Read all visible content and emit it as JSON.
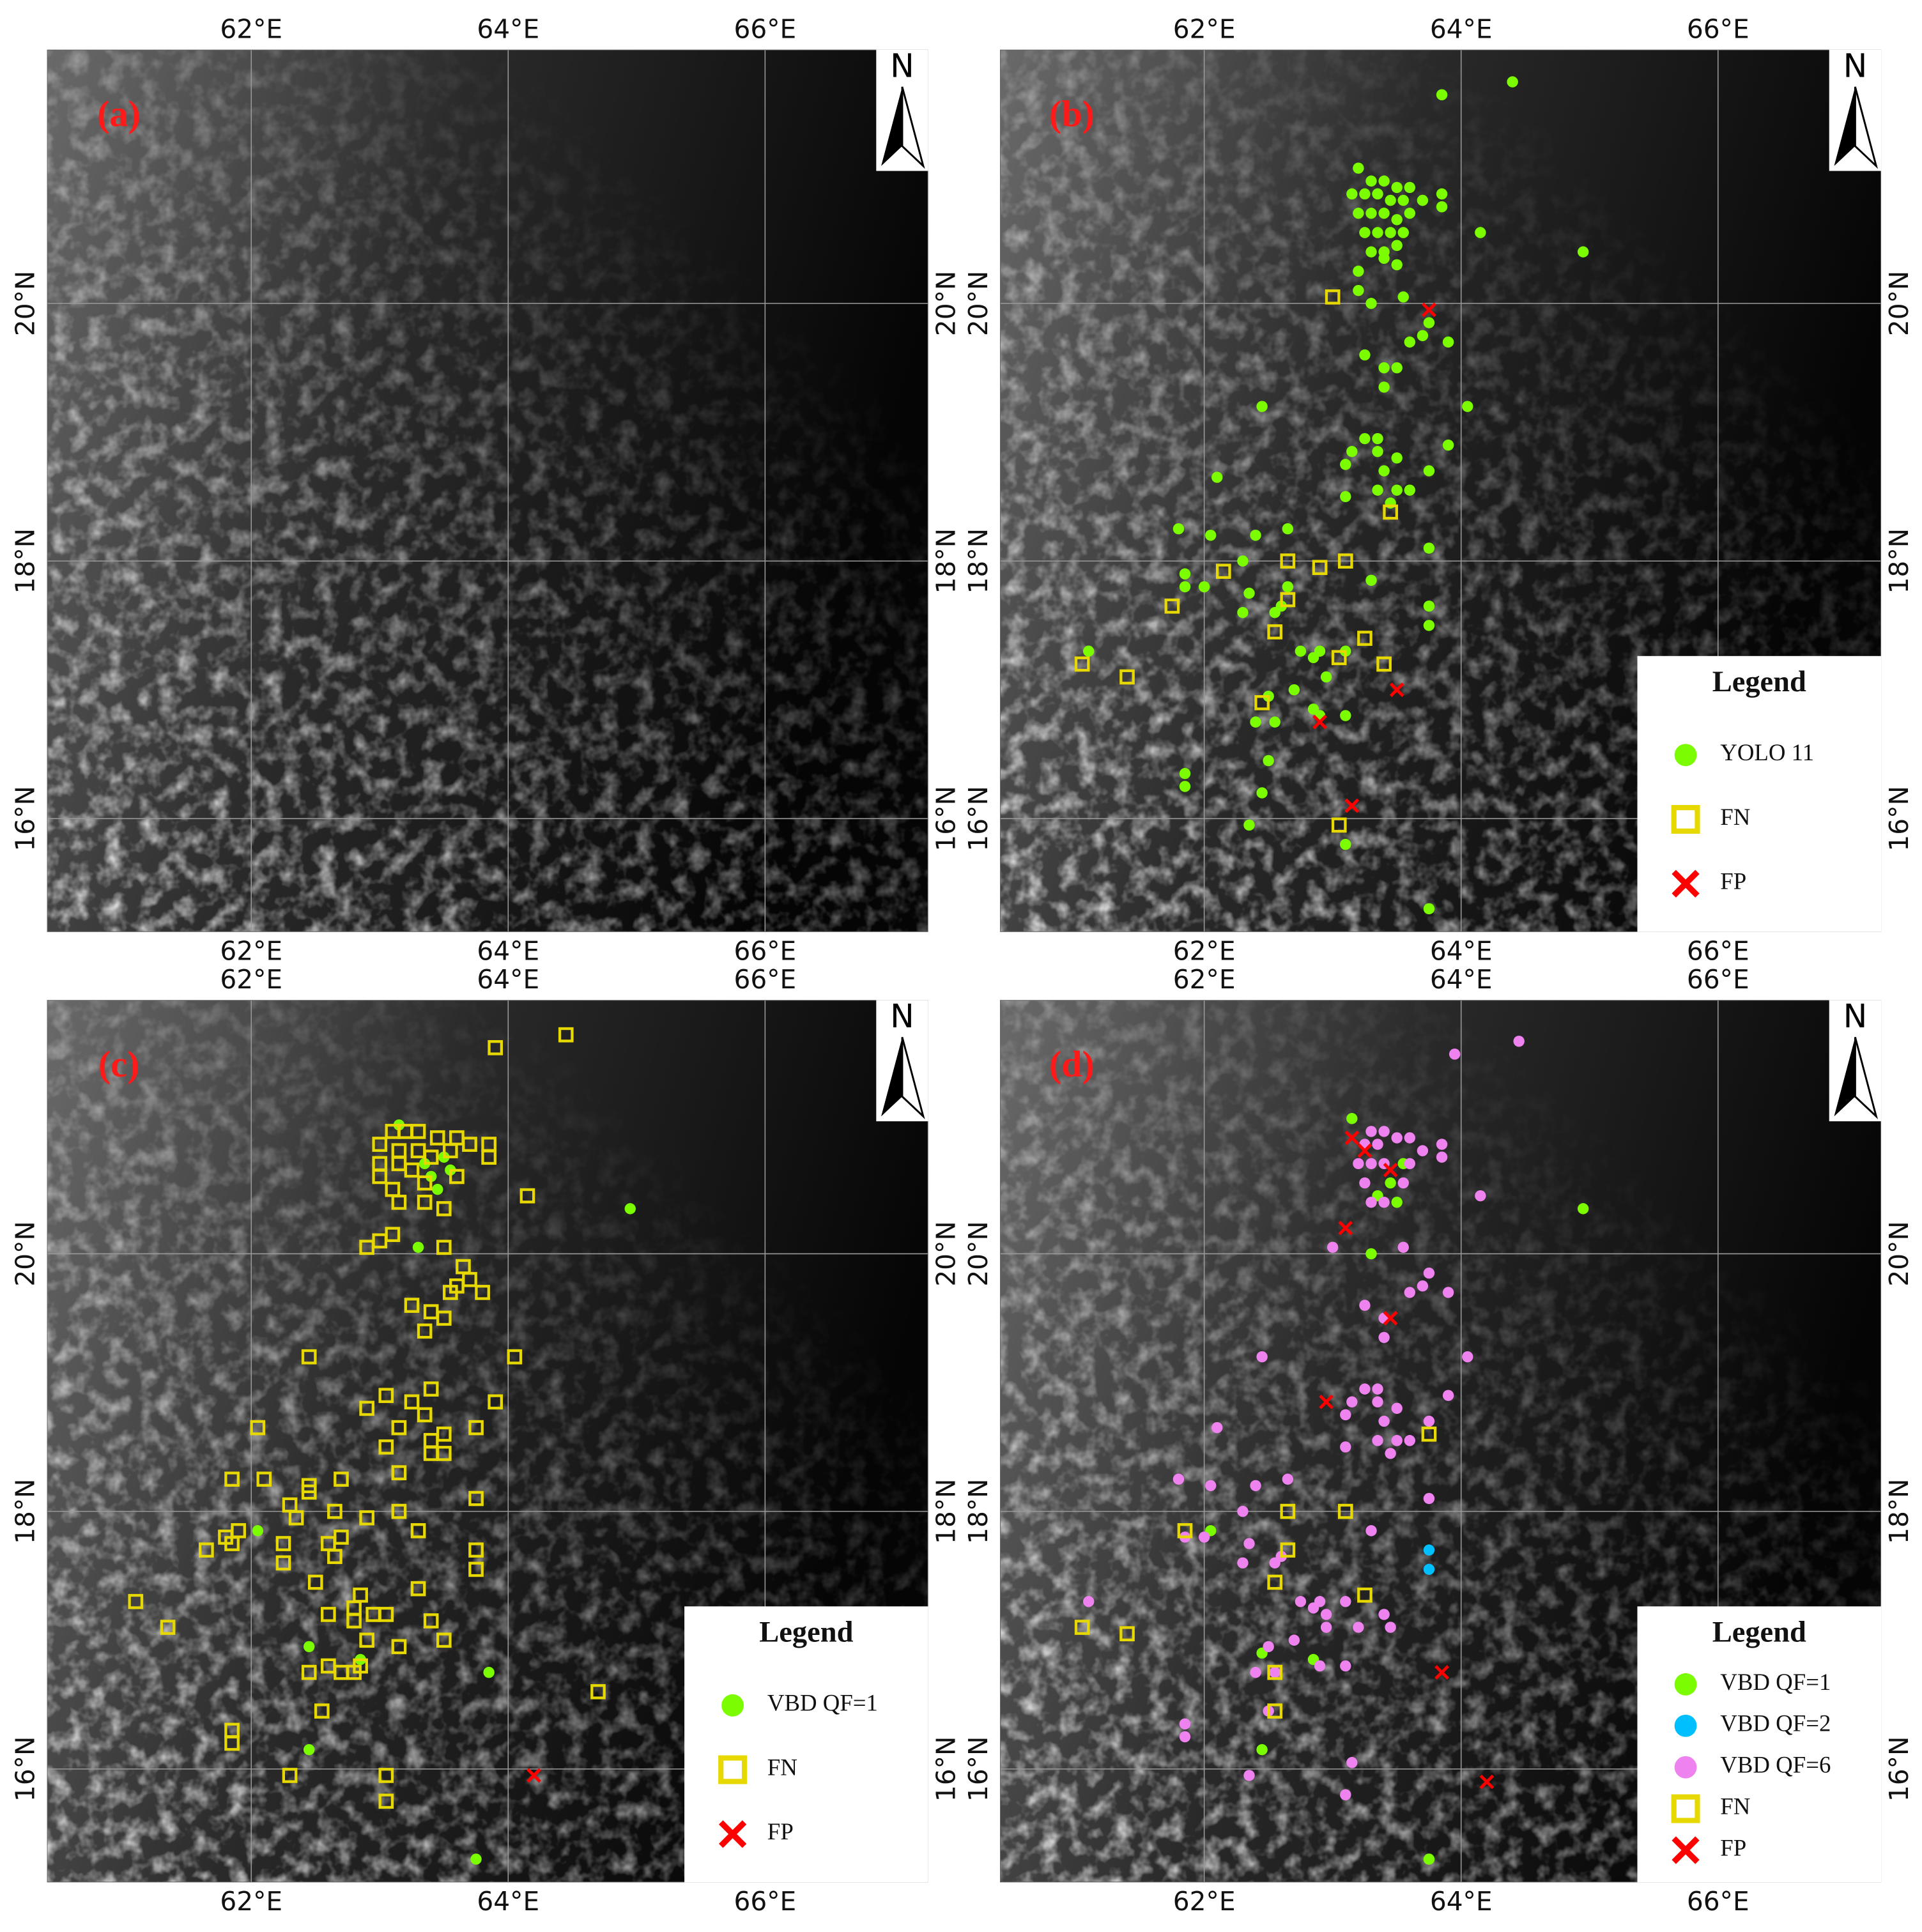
{
  "chart_data": [
    {
      "type": "scatter",
      "panel_label": "(a)",
      "north_label": "N",
      "xlim": [
        60.41,
        67.27
      ],
      "ylim": [
        15.12,
        21.97
      ],
      "xticks": [
        {
          "value": 62,
          "label": "62°E"
        },
        {
          "value": 64,
          "label": "64°E"
        },
        {
          "value": 66,
          "label": "66°E"
        }
      ],
      "yticks": [
        {
          "value": 16,
          "label": "16°N"
        },
        {
          "value": 18,
          "label": "18°N"
        },
        {
          "value": 20,
          "label": "20°N"
        }
      ],
      "grid": true,
      "series": []
    },
    {
      "type": "scatter",
      "panel_label": "(b)",
      "north_label": "N",
      "xlim": [
        60.41,
        67.27
      ],
      "ylim": [
        15.12,
        21.97
      ],
      "xticks": [
        {
          "value": 62,
          "label": "62°E"
        },
        {
          "value": 64,
          "label": "64°E"
        },
        {
          "value": 66,
          "label": "66°E"
        }
      ],
      "yticks": [
        {
          "value": 16,
          "label": "16°N"
        },
        {
          "value": 18,
          "label": "18°N"
        },
        {
          "value": 20,
          "label": "20°N"
        }
      ],
      "grid": true,
      "legend": "lower right",
      "legend_title": "Legend",
      "series": [
        {
          "name": "YOLO 11",
          "color": "#7cfc00",
          "marker": "circle",
          "x": [
            63.2,
            63.3,
            63.4,
            63.5,
            63.6,
            63.15,
            63.25,
            63.35,
            63.45,
            63.55,
            63.7,
            63.85,
            63.2,
            63.3,
            63.4,
            63.5,
            63.6,
            63.85,
            63.25,
            63.35,
            63.45,
            63.55,
            63.3,
            63.4,
            63.5,
            63.2,
            63.4,
            63.5,
            63.85,
            64.4,
            64.15,
            64.95,
            63.2,
            63.3,
            63.55,
            63.6,
            63.7,
            63.75,
            63.9,
            63.25,
            63.4,
            63.5,
            63.4,
            62.45,
            64.05,
            63.25,
            63.35,
            63.15,
            63.35,
            63.5,
            63.9,
            63.1,
            63.4,
            63.75,
            62.1,
            63.35,
            63.5,
            63.6,
            63.45,
            63.1,
            61.8,
            62.05,
            62.4,
            62.65,
            62.3,
            62.0,
            61.85,
            61.85,
            62.35,
            62.3,
            62.55,
            62.6,
            62.65,
            63.3,
            63.75,
            63.75,
            61.1,
            62.75,
            62.85,
            62.9,
            63.1,
            62.95,
            62.5,
            62.7,
            62.85,
            62.9,
            63.1,
            62.55,
            62.4,
            62.5,
            61.85,
            61.85,
            62.45,
            62.35,
            63.1,
            63.75,
            63.75
          ],
          "values": [
            21.05,
            20.95,
            20.95,
            20.9,
            20.9,
            20.85,
            20.85,
            20.85,
            20.8,
            20.8,
            20.8,
            20.85,
            20.7,
            20.7,
            20.7,
            20.65,
            20.7,
            20.75,
            20.55,
            20.55,
            20.55,
            20.55,
            20.4,
            20.4,
            20.45,
            20.25,
            20.35,
            20.3,
            21.62,
            21.72,
            20.55,
            20.4,
            20.1,
            20.0,
            20.05,
            19.7,
            19.75,
            19.85,
            19.7,
            19.6,
            19.5,
            19.5,
            19.35,
            19.2,
            19.2,
            18.95,
            18.95,
            18.85,
            18.85,
            18.8,
            18.9,
            18.75,
            18.7,
            18.7,
            18.65,
            18.55,
            18.55,
            18.55,
            18.45,
            18.5,
            18.25,
            18.2,
            18.2,
            18.25,
            18.0,
            17.8,
            17.8,
            17.9,
            17.75,
            17.6,
            17.6,
            17.65,
            17.8,
            17.85,
            17.65,
            17.5,
            17.3,
            17.3,
            17.25,
            17.3,
            17.3,
            17.1,
            16.95,
            17.0,
            16.85,
            16.8,
            16.8,
            16.75,
            16.75,
            16.45,
            16.35,
            16.25,
            16.2,
            15.95,
            15.8,
            15.3,
            18.1
          ]
        },
        {
          "name": "FN",
          "color": "#e6d800",
          "marker": "square",
          "x": [
            63.0,
            63.45,
            62.15,
            62.65,
            62.9,
            63.1,
            61.75,
            62.65,
            62.55,
            63.25,
            63.05,
            63.4,
            61.05,
            61.4,
            62.45,
            63.05
          ],
          "values": [
            20.05,
            18.38,
            17.92,
            18.0,
            17.95,
            18.0,
            17.65,
            17.7,
            17.45,
            17.4,
            17.25,
            17.2,
            17.2,
            17.1,
            16.9,
            15.95
          ]
        },
        {
          "name": "FP",
          "color": "#ff0000",
          "marker": "x",
          "x": [
            63.75,
            63.5,
            62.9,
            63.15
          ],
          "values": [
            19.95,
            17.0,
            16.75,
            16.1
          ]
        }
      ]
    },
    {
      "type": "scatter",
      "panel_label": "(c)",
      "north_label": "N",
      "xlim": [
        60.41,
        67.27
      ],
      "ylim": [
        15.12,
        21.97
      ],
      "xticks": [
        {
          "value": 62,
          "label": "62°E"
        },
        {
          "value": 64,
          "label": "64°E"
        },
        {
          "value": 66,
          "label": "66°E"
        }
      ],
      "yticks": [
        {
          "value": 16,
          "label": "16°N"
        },
        {
          "value": 18,
          "label": "18°N"
        },
        {
          "value": 20,
          "label": "20°N"
        }
      ],
      "grid": true,
      "legend": "lower right",
      "legend_title": "Legend",
      "series": [
        {
          "name": "VBD QF=1",
          "color": "#7cfc00",
          "marker": "circle",
          "x": [
            63.15,
            63.35,
            63.45,
            63.5,
            63.55,
            63.4,
            63.3,
            64.95,
            62.05,
            62.45,
            62.45,
            63.85,
            63.75,
            62.85
          ],
          "values": [
            21.0,
            20.7,
            20.5,
            20.75,
            20.65,
            20.6,
            20.05,
            20.35,
            17.85,
            16.95,
            16.15,
            16.75,
            15.3,
            16.85
          ]
        },
        {
          "name": "FN",
          "color": "#e6d800",
          "marker": "square",
          "x": [
            63.9,
            64.45,
            63.1,
            63.2,
            63.3,
            63.45,
            63.6,
            63.7,
            63.85,
            63.0,
            63.15,
            63.3,
            63.4,
            63.55,
            63.85,
            63.0,
            63.15,
            63.25,
            63.0,
            63.1,
            63.35,
            63.6,
            63.15,
            63.35,
            63.5,
            64.15,
            63.1,
            63.0,
            62.9,
            63.5,
            63.65,
            63.6,
            63.7,
            63.8,
            63.55,
            63.25,
            63.4,
            63.5,
            63.35,
            64.05,
            62.45,
            63.4,
            63.05,
            63.25,
            62.9,
            63.35,
            63.15,
            63.75,
            63.9,
            62.05,
            63.4,
            63.5,
            63.05,
            63.4,
            63.5,
            63.15,
            63.75,
            61.85,
            62.1,
            62.45,
            62.7,
            62.45,
            62.3,
            62.35,
            62.65,
            62.9,
            63.15,
            63.3,
            61.9,
            61.8,
            61.85,
            61.65,
            62.25,
            62.25,
            62.6,
            62.65,
            62.7,
            62.5,
            63.75,
            63.75,
            61.1,
            61.35,
            62.6,
            62.8,
            62.85,
            62.8,
            62.95,
            63.05,
            63.3,
            63.4,
            63.5,
            62.9,
            62.85,
            63.15,
            62.6,
            62.45,
            62.8,
            62.7,
            64.7,
            62.55,
            61.85,
            61.85,
            62.3,
            63.05,
            63.05
          ],
          "values": [
            21.6,
            21.7,
            20.95,
            20.95,
            20.95,
            20.9,
            20.9,
            20.85,
            20.85,
            20.85,
            20.8,
            20.8,
            20.75,
            20.8,
            20.75,
            20.7,
            20.7,
            20.65,
            20.6,
            20.5,
            20.55,
            20.6,
            20.4,
            20.4,
            20.35,
            20.45,
            20.15,
            20.1,
            20.05,
            20.05,
            19.9,
            19.75,
            19.8,
            19.7,
            19.7,
            19.6,
            19.55,
            19.5,
            19.4,
            19.2,
            19.2,
            18.95,
            18.9,
            18.85,
            18.8,
            18.75,
            18.65,
            18.65,
            18.85,
            18.65,
            18.55,
            18.6,
            18.5,
            18.45,
            18.45,
            18.3,
            18.1,
            18.25,
            18.25,
            18.2,
            18.25,
            18.15,
            18.05,
            17.95,
            18.0,
            17.95,
            18.0,
            17.85,
            17.85,
            17.8,
            17.75,
            17.7,
            17.75,
            17.6,
            17.75,
            17.65,
            17.8,
            17.45,
            17.7,
            17.55,
            17.3,
            17.1,
            17.2,
            17.25,
            17.35,
            17.15,
            17.2,
            17.2,
            17.4,
            17.15,
            17.0,
            17.0,
            16.8,
            16.95,
            16.8,
            16.75,
            16.75,
            16.75,
            16.6,
            16.45,
            16.3,
            16.2,
            15.95,
            15.95,
            15.75
          ]
        },
        {
          "name": "FP",
          "color": "#ff0000",
          "marker": "x",
          "x": [
            64.2
          ],
          "values": [
            15.95
          ]
        }
      ]
    },
    {
      "type": "scatter",
      "panel_label": "(d)",
      "north_label": "N",
      "xlim": [
        60.41,
        67.27
      ],
      "ylim": [
        15.12,
        21.97
      ],
      "xticks": [
        {
          "value": 62,
          "label": "62°E"
        },
        {
          "value": 64,
          "label": "64°E"
        },
        {
          "value": 66,
          "label": "66°E"
        }
      ],
      "yticks": [
        {
          "value": 16,
          "label": "16°N"
        },
        {
          "value": 18,
          "label": "18°N"
        },
        {
          "value": 20,
          "label": "20°N"
        }
      ],
      "grid": true,
      "legend": "lower right",
      "legend_title": "Legend",
      "series": [
        {
          "name": "VBD QF=1",
          "color": "#7cfc00",
          "marker": "circle",
          "x": [
            63.15,
            63.45,
            63.55,
            63.35,
            63.5,
            64.95,
            63.3,
            62.05,
            62.45,
            62.45,
            63.75,
            62.85
          ],
          "values": [
            21.05,
            20.55,
            20.7,
            20.45,
            20.4,
            20.35,
            20.0,
            17.85,
            16.9,
            16.15,
            15.3,
            16.85
          ]
        },
        {
          "name": "VBD QF=2",
          "color": "#00bfff",
          "marker": "circle",
          "x": [
            63.75,
            63.75
          ],
          "values": [
            17.7,
            17.55
          ]
        },
        {
          "name": "VBD QF=6",
          "color": "#ee82ee",
          "marker": "circle",
          "x": [
            63.3,
            63.4,
            63.5,
            63.6,
            63.25,
            63.35,
            63.7,
            63.85,
            63.2,
            63.3,
            63.4,
            63.6,
            63.85,
            63.25,
            63.55,
            63.3,
            63.4,
            63.95,
            64.45,
            64.15,
            63.0,
            63.55,
            63.6,
            63.7,
            63.75,
            63.9,
            63.25,
            63.4,
            63.4,
            62.45,
            64.05,
            63.25,
            63.35,
            63.15,
            63.35,
            63.5,
            63.9,
            63.1,
            63.4,
            63.75,
            62.1,
            63.35,
            63.5,
            63.6,
            63.45,
            63.1,
            61.8,
            62.05,
            62.4,
            62.65,
            62.3,
            62.0,
            61.85,
            62.35,
            62.3,
            62.55,
            62.6,
            63.3,
            63.75,
            61.1,
            62.75,
            62.85,
            62.9,
            63.1,
            62.95,
            62.5,
            62.7,
            62.9,
            63.1,
            62.55,
            62.4,
            62.5,
            61.85,
            61.85,
            62.35,
            63.1,
            63.15,
            62.95,
            63.2,
            63.4,
            63.45
          ],
          "values": [
            20.95,
            20.95,
            20.9,
            20.9,
            20.85,
            20.85,
            20.8,
            20.85,
            20.7,
            20.7,
            20.7,
            20.7,
            20.75,
            20.55,
            20.55,
            20.4,
            20.4,
            21.55,
            21.65,
            20.45,
            20.05,
            20.05,
            19.7,
            19.75,
            19.85,
            19.7,
            19.6,
            19.5,
            19.35,
            19.2,
            19.2,
            18.95,
            18.95,
            18.85,
            18.85,
            18.8,
            18.9,
            18.75,
            18.7,
            18.7,
            18.65,
            18.55,
            18.55,
            18.55,
            18.45,
            18.5,
            18.25,
            18.2,
            18.2,
            18.25,
            18.0,
            17.8,
            17.8,
            17.75,
            17.6,
            17.6,
            17.65,
            17.85,
            18.1,
            17.3,
            17.3,
            17.25,
            17.3,
            17.3,
            17.1,
            16.95,
            17.0,
            16.8,
            16.8,
            16.75,
            16.75,
            16.45,
            16.35,
            16.25,
            15.95,
            15.8,
            16.05,
            17.2,
            17.1,
            17.2,
            17.1
          ]
        },
        {
          "name": "FN",
          "color": "#e6d800",
          "marker": "square",
          "x": [
            63.75,
            62.65,
            63.1,
            61.85,
            62.65,
            62.55,
            63.25,
            61.05,
            61.4,
            62.55,
            62.55
          ],
          "values": [
            18.6,
            18.0,
            18.0,
            17.85,
            17.7,
            17.45,
            17.35,
            17.1,
            17.05,
            16.75,
            16.45
          ]
        },
        {
          "name": "FP",
          "color": "#ff0000",
          "marker": "x",
          "x": [
            63.15,
            63.25,
            63.45,
            63.1,
            63.45,
            62.95,
            63.85,
            64.2
          ],
          "values": [
            20.9,
            20.8,
            20.65,
            20.2,
            19.5,
            18.85,
            16.75,
            15.9
          ]
        }
      ]
    }
  ]
}
